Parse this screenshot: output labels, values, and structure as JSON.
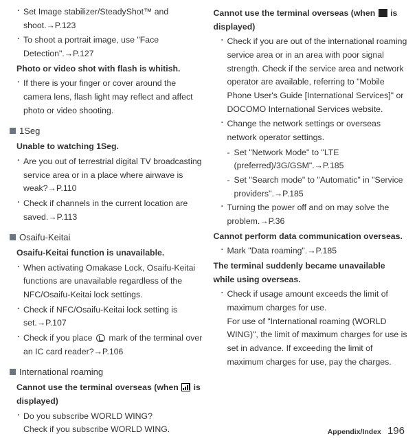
{
  "col1": {
    "i1a": "Set Image stabilizer/SteadyShot™ and shoot.",
    "i1a_ref": "→P.123",
    "i1b": "To shoot a portrait image, use \"Face Detection\".",
    "i1b_ref": "→P.127",
    "h1": "Photo or video shot with flash is whitish.",
    "i1c": "If there is your finger or cover around the camera lens, flash light may reflect and affect photo or video shooting.",
    "s2_title": "1Seg",
    "h2": "Unable to watching 1Seg.",
    "i2a": "Are you out of terrestrial digital TV broadcasting service area or in a place where airwave is weak?",
    "i2a_ref": "→P.110",
    "i2b": "Check if channels in the current location are saved.",
    "i2b_ref": "→P.113",
    "s3_title": "Osaifu-Keitai",
    "h3": "Osaifu-Keitai function is unavailable.",
    "i3a": "When activating Omakase Lock, Osaifu-Keitai functions are unavailable regardless of the NFC/Osaifu-Keitai lock settings.",
    "i3b": "Check if NFC/Osaifu-Keitai lock setting is set.",
    "i3b_ref": "→P.107",
    "i3c_a": "Check if you place ",
    "i3c_b": " mark of the terminal over an IC card reader?",
    "i3c_ref": "→P.106",
    "s4_title": "International roaming",
    "h4a": "Cannot use the terminal overseas (when ",
    "h4b": " is displayed)",
    "i4a": "Do you subscribe WORLD WING?",
    "i4a2": "Check if you subscribe WORLD WING."
  },
  "col2": {
    "h5a": "Cannot use the terminal overseas (when ",
    "h5b": " is displayed)",
    "i5a": "Check if you are out of the international roaming service area or in an area with poor signal strength. Check if the service area and network operator are available, referring to \"Mobile Phone User's Guide [International Services]\" or DOCOMO International Services website.",
    "i5b": "Change the network settings or overseas network operator settings.",
    "i5b_s1": "Set \"Network Mode\" to \"LTE (preferred)/3G/GSM\".",
    "i5b_s1_ref": "→P.185",
    "i5b_s2": "Set \"Search mode\" to \"Automatic\" in \"Service providers\".",
    "i5b_s2_ref": "→P.185",
    "i5c": "Turning the power off and on may solve the problem.",
    "i5c_ref": "→P.36",
    "h6": "Cannot perform data communication overseas.",
    "i6a": "Mark \"Data roaming\".",
    "i6a_ref": "→P.185",
    "h7": "The terminal suddenly became unavailable while using overseas.",
    "i7a": "Check if usage amount exceeds the limit of maximum charges for use.",
    "i7a2": "For use of \"International roaming (WORLD WING)\", the limit of maximum charges for use is set in advance. If exceeding the limit of maximum charges for use, pay the charges."
  },
  "footer_label": "Appendix/Index",
  "footer_page": "196"
}
